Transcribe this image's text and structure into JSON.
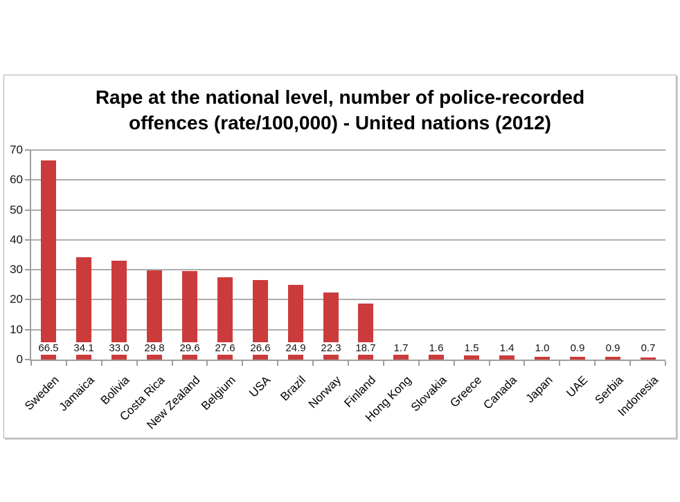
{
  "page": {
    "background_color": "#ffffff"
  },
  "chart_data": {
    "type": "bar",
    "title": "Rape at the national level, number of police-recorded offences (rate/100,000) - United nations (2012)",
    "title_lines": [
      "Rape at the national level, number of police-recorded",
      "offences (rate/100,000) - United nations (2012)"
    ],
    "categories": [
      "Sweden",
      "Jamaica",
      "Bolivia",
      "Costa Rica",
      "New Zealand",
      "Belgium",
      "USA",
      "Brazil",
      "Norway",
      "Finland",
      "Hong Kong",
      "Slovakia",
      "Greece",
      "Canada",
      "Japan",
      "UAE",
      "Serbia",
      "Indonesia"
    ],
    "values": [
      66.5,
      34.1,
      33.0,
      29.8,
      29.6,
      27.6,
      26.6,
      24.9,
      22.3,
      18.7,
      1.7,
      1.6,
      1.5,
      1.4,
      1.0,
      0.9,
      0.9,
      0.7
    ],
    "data_labels": [
      "66.5",
      "34.1",
      "33.0",
      "29.8",
      "29.6",
      "27.6",
      "26.6",
      "24.9",
      "22.3",
      "18.7",
      "1.7",
      "1.6",
      "1.5",
      "1.4",
      "1.0",
      "0.9",
      "0.9",
      "0.7"
    ],
    "xlabel": "",
    "ylabel": "",
    "ylim": [
      0,
      70
    ],
    "yticks": [
      0,
      10,
      20,
      30,
      40,
      50,
      60,
      70
    ],
    "grid": true,
    "legend": false,
    "bar_color": "#cb3b3b",
    "gridline_color": "#adadad",
    "axis_color": "#9d9d9d",
    "tick_label_color": "#141414",
    "title_color": "#000000"
  }
}
